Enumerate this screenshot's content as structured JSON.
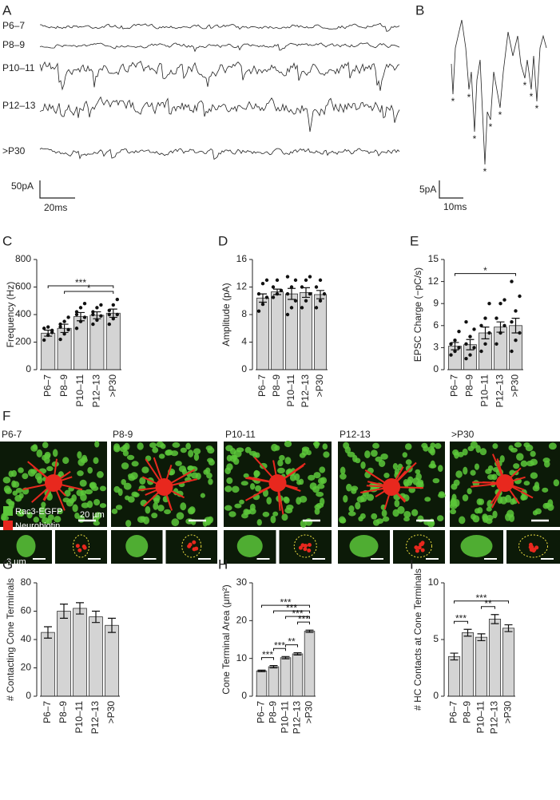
{
  "panels": {
    "A": {
      "label": "A",
      "traces": [
        "P6–7",
        "P8–9",
        "P10–11",
        "P12–13",
        ">P30"
      ],
      "scale_y": "50pA",
      "scale_x": "20ms"
    },
    "B": {
      "label": "B",
      "scale_y": "5pA",
      "scale_x": "10ms",
      "asterisks": [
        "*",
        "*",
        "*",
        "*",
        "*",
        "*",
        "*",
        "*",
        "*"
      ]
    },
    "F": {
      "label": "F",
      "columns": [
        "P6-7",
        "P8-9",
        "P10-11",
        "P12-13",
        ">P30"
      ],
      "legend": [
        {
          "name": "Rac3-EGFP",
          "color": "#5cc83a"
        },
        {
          "name": "Neurobiotin",
          "color": "#e8281e"
        }
      ],
      "scale_large": "20 µm",
      "scale_small": "3 µm"
    }
  },
  "chart_data": [
    {
      "type": "bar",
      "panel": "C",
      "ylabel": "Frequency (Hz)",
      "color": "#d4d4d4",
      "categories": [
        "P6–7",
        "P8–9",
        "P10–11",
        "P12–13",
        ">P30"
      ],
      "values": [
        265,
        300,
        385,
        395,
        410
      ],
      "errors": [
        22,
        30,
        30,
        25,
        30
      ],
      "points": [
        [
          215,
          250,
          270,
          300,
          310,
          285
        ],
        [
          220,
          260,
          290,
          310,
          350,
          380,
          330
        ],
        [
          300,
          350,
          380,
          420,
          450,
          480,
          400
        ],
        [
          330,
          360,
          390,
          420,
          450,
          470,
          400
        ],
        [
          330,
          370,
          400,
          430,
          470,
          510,
          400
        ]
      ],
      "ylim": [
        0,
        800
      ],
      "yticks": [
        0,
        200,
        400,
        600,
        800
      ],
      "significance": [
        {
          "between": [
            "P8–9",
            ">P30"
          ],
          "label": "*"
        },
        {
          "between": [
            "P6–7",
            ">P30"
          ],
          "label": "***"
        }
      ]
    },
    {
      "type": "bar",
      "panel": "D",
      "ylabel": "Amplitude (pA)",
      "color": "#d4d4d4",
      "categories": [
        "P6–7",
        "P8–9",
        "P10–11",
        "P12–13",
        ">P30"
      ],
      "values": [
        10.4,
        11.3,
        11,
        11.2,
        10.9
      ],
      "errors": [
        0.6,
        0.4,
        0.8,
        0.7,
        0.6
      ],
      "points": [
        [
          8.5,
          9.5,
          10.5,
          11,
          12.5,
          13
        ],
        [
          10.5,
          11,
          11.5,
          12,
          13
        ],
        [
          8,
          9,
          10,
          11,
          12,
          13,
          13.5
        ],
        [
          9,
          10,
          11,
          12,
          13,
          13.5
        ],
        [
          9,
          10,
          11,
          12,
          13
        ]
      ],
      "ylim": [
        0,
        16
      ],
      "yticks": [
        0,
        4,
        8,
        12,
        16
      ],
      "significance": []
    },
    {
      "type": "bar",
      "panel": "E",
      "ylabel": "EPSC Charge (−pC/s)",
      "color": "#d4d4d4",
      "categories": [
        "P6–7",
        "P8–9",
        "P10–11",
        "P12–13",
        ">P30"
      ],
      "values": [
        3.2,
        3.4,
        5,
        5.8,
        6
      ],
      "errors": [
        0.5,
        0.7,
        0.8,
        0.7,
        1
      ],
      "points": [
        [
          2,
          2.5,
          3,
          3.5,
          4,
          5.2
        ],
        [
          1.5,
          2,
          3,
          3.5,
          4.5,
          5.5,
          6.5
        ],
        [
          2.5,
          3.5,
          5,
          6,
          7,
          9
        ],
        [
          3.5,
          5,
          6,
          7,
          9,
          9.5
        ],
        [
          2.5,
          4,
          5,
          6.5,
          8,
          10,
          12
        ]
      ],
      "ylim": [
        0,
        15
      ],
      "yticks": [
        0,
        3,
        6,
        9,
        12,
        15
      ],
      "significance": [
        {
          "between": [
            "P6–7",
            ">P30"
          ],
          "label": "*"
        }
      ]
    },
    {
      "type": "bar",
      "panel": "G",
      "ylabel": "# Contacting Cone Terminals",
      "color": "#d4d4d4",
      "categories": [
        "P6–7",
        "P8–9",
        "P10–11",
        "P12–13",
        ">P30"
      ],
      "values": [
        45,
        60,
        62,
        56,
        50
      ],
      "errors": [
        4,
        5,
        4,
        4,
        5
      ],
      "ylim": [
        0,
        80
      ],
      "yticks": [
        0,
        20,
        40,
        60,
        80
      ],
      "significance": []
    },
    {
      "type": "bar",
      "panel": "H",
      "ylabel": "Cone Terminal Area (μm²)",
      "color": "#d4d4d4",
      "categories": [
        "P6–7",
        "P8–9",
        "P10–11",
        "P12–13",
        ">P30"
      ],
      "values": [
        6.7,
        7.8,
        10.2,
        11.2,
        17.2
      ],
      "errors": [
        0.2,
        0.3,
        0.3,
        0.3,
        0.3
      ],
      "ylim": [
        0,
        30
      ],
      "yticks": [
        0,
        10,
        20,
        30
      ],
      "significance": [
        {
          "between": [
            "P6–7",
            "P8–9"
          ],
          "label": "***"
        },
        {
          "between": [
            "P8–9",
            "P10–11"
          ],
          "label": "***"
        },
        {
          "between": [
            "P10–11",
            "P12–13"
          ],
          "label": "**"
        },
        {
          "between": [
            "P12–13",
            ">P30"
          ],
          "label": "***"
        },
        {
          "between": [
            "P10–11",
            ">P30"
          ],
          "label": "***"
        },
        {
          "between": [
            "P8–9",
            ">P30"
          ],
          "label": "***"
        },
        {
          "between": [
            "P6–7",
            ">P30"
          ],
          "label": "***"
        }
      ]
    },
    {
      "type": "bar",
      "panel": "I",
      "ylabel": "# HC Contacts at Cone Terminals",
      "color": "#d4d4d4",
      "categories": [
        "P6–7",
        "P8–9",
        "P10–11",
        "P12–13",
        ">P30"
      ],
      "values": [
        3.5,
        5.6,
        5.2,
        6.8,
        6
      ],
      "errors": [
        0.3,
        0.3,
        0.3,
        0.4,
        0.3
      ],
      "ylim": [
        0,
        10
      ],
      "yticks": [
        0,
        5,
        10
      ],
      "significance": [
        {
          "between": [
            "P6–7",
            "P8–9"
          ],
          "label": "***"
        },
        {
          "between": [
            "P10–11",
            "P12–13"
          ],
          "label": "**"
        },
        {
          "between": [
            "P6–7",
            ">P30"
          ],
          "label": "***"
        }
      ]
    }
  ]
}
